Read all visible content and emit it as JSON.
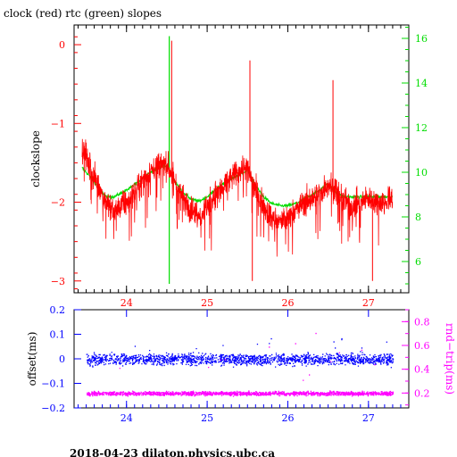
{
  "colors": {
    "clock": "#ff0000",
    "rtc": "#00dd00",
    "offset": "#0000ff",
    "roundtrip": "#ff00ff",
    "frame": "#000000"
  },
  "footer": "2018-04-23  dilaton.physics.ubc.ca",
  "chart_data": [
    {
      "type": "line",
      "title": "clock (red) rtc (green) slopes",
      "xlabel": "",
      "ylabel": "clockslope",
      "xlim": [
        23.35,
        27.5
      ],
      "xticks": [
        24,
        25,
        26,
        27
      ],
      "xtick_labels": [
        "24",
        "25",
        "26",
        "27"
      ],
      "ylim": [
        -3.15,
        0.25
      ],
      "yticks": [
        0,
        -1,
        -2,
        -3
      ],
      "ytick_labels": [
        "0",
        "−1",
        "−2",
        "−3"
      ],
      "y2lim": [
        4.6,
        16.6
      ],
      "y2ticks": [
        6,
        8,
        10,
        12,
        14,
        16
      ],
      "y2tick_labels": [
        "6",
        "8",
        "10",
        "12",
        "14",
        "16"
      ],
      "grid": false,
      "series": [
        {
          "name": "clock (red)",
          "axis": "left",
          "x": [
            23.45,
            23.55,
            23.65,
            23.75,
            23.85,
            23.95,
            24.05,
            24.15,
            24.25,
            24.35,
            24.45,
            24.52,
            24.6,
            24.7,
            24.8,
            24.9,
            25.0,
            25.1,
            25.2,
            25.3,
            25.4,
            25.5,
            25.6,
            25.7,
            25.8,
            25.9,
            26.0,
            26.1,
            26.2,
            26.3,
            26.4,
            26.5,
            26.6,
            26.7,
            26.8,
            26.9,
            27.0,
            27.1,
            27.2,
            27.3
          ],
          "y": [
            -1.3,
            -1.55,
            -1.8,
            -2.0,
            -2.1,
            -2.05,
            -1.95,
            -1.8,
            -1.65,
            -1.55,
            -1.5,
            -1.55,
            -1.75,
            -1.95,
            -2.1,
            -2.15,
            -2.05,
            -1.9,
            -1.8,
            -1.7,
            -1.6,
            -1.55,
            -1.85,
            -2.05,
            -2.2,
            -2.25,
            -2.2,
            -2.1,
            -2.0,
            -1.95,
            -1.9,
            -1.75,
            -1.85,
            -2.0,
            -2.05,
            -2.0,
            -1.95,
            -2.0,
            -2.0,
            -1.95
          ]
        },
        {
          "name": "rtc (green)",
          "axis": "right",
          "x": [
            23.45,
            23.55,
            23.65,
            23.75,
            23.85,
            23.95,
            24.05,
            24.15,
            24.25,
            24.35,
            24.45,
            24.52,
            24.6,
            24.7,
            24.8,
            24.9,
            25.0,
            25.1,
            25.2,
            25.3,
            25.4,
            25.5,
            25.6,
            25.7,
            25.8,
            25.9,
            26.0,
            26.1,
            26.2,
            26.3,
            26.4,
            26.5,
            26.6,
            26.7,
            26.8,
            26.9,
            27.0,
            27.1,
            27.2,
            27.3
          ],
          "y": [
            10.2,
            9.8,
            9.3,
            8.9,
            8.9,
            9.1,
            9.3,
            9.6,
            9.9,
            10.1,
            10.3,
            10.2,
            9.6,
            9.1,
            8.8,
            8.7,
            8.9,
            9.2,
            9.5,
            9.7,
            9.9,
            10.1,
            9.4,
            8.9,
            8.6,
            8.5,
            8.5,
            8.6,
            8.8,
            9.0,
            9.2,
            9.5,
            9.1,
            8.9,
            8.9,
            8.9,
            8.9,
            8.9,
            8.9,
            8.9
          ]
        }
      ],
      "spikes": {
        "clock_up": [
          24.56,
          25.53,
          26.56
        ],
        "clock_down": [
          25.56,
          27.05
        ],
        "rtc_spike": 24.53
      }
    },
    {
      "type": "scatter",
      "title": "",
      "xlabel": "",
      "ylabel": "offset(ms)",
      "y2label": "rnd−trip(ms)",
      "xlim": [
        23.35,
        27.5
      ],
      "xticks": [
        24,
        25,
        26,
        27
      ],
      "xtick_labels": [
        "24",
        "25",
        "26",
        "27"
      ],
      "ylim": [
        -0.2,
        0.2
      ],
      "yticks": [
        0.2,
        0.1,
        0,
        -0.1,
        -0.2
      ],
      "ytick_labels": [
        "0.2",
        "0.1",
        "0",
        "−0.1",
        "−0.2"
      ],
      "y2lim": [
        0.075,
        0.9
      ],
      "y2ticks": [
        0.2,
        0.4,
        0.6,
        0.8
      ],
      "y2tick_labels": [
        "0.2",
        "0.4",
        "0.6",
        "0.8"
      ],
      "series": [
        {
          "name": "offset(ms)",
          "axis": "left",
          "x_range": [
            23.5,
            27.3
          ],
          "center": 0.0,
          "spread": 0.03
        },
        {
          "name": "rnd−trip(ms)",
          "axis": "right",
          "x_range": [
            23.5,
            27.3
          ],
          "center": 0.2,
          "spread": 0.02
        }
      ]
    }
  ]
}
